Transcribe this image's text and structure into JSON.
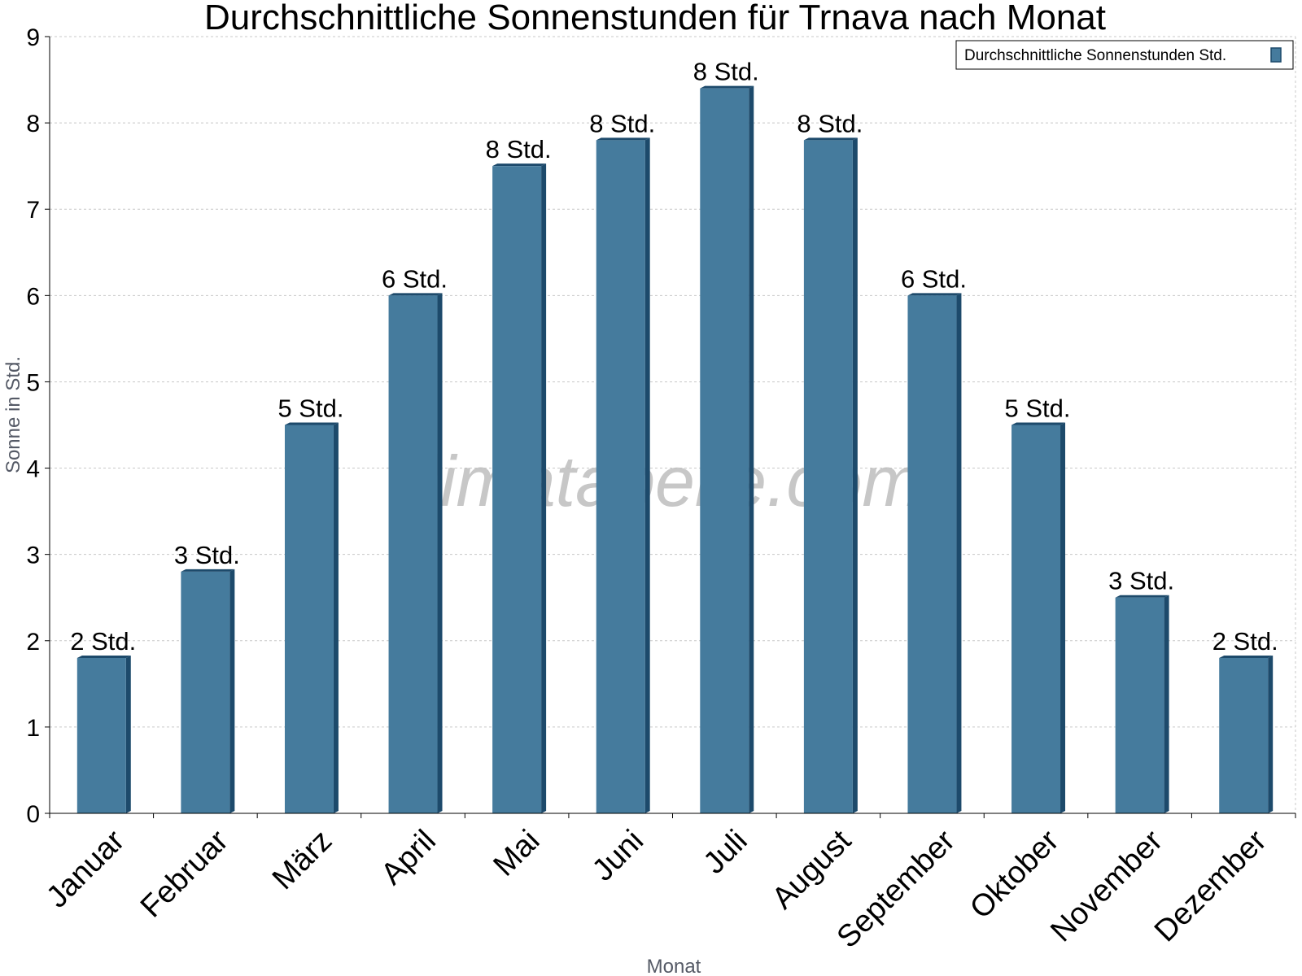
{
  "chart_data": {
    "type": "bar",
    "title": "Durchschnittliche Sonnenstunden für Trnava nach Monat",
    "xlabel": "Monat",
    "ylabel": "Sonne in Std.",
    "ylim": [
      0,
      9
    ],
    "yticks": [
      0,
      1,
      2,
      3,
      4,
      5,
      6,
      7,
      8,
      9
    ],
    "grid": true,
    "legend_position": "top-right",
    "categories": [
      "Januar",
      "Februar",
      "März",
      "April",
      "Mai",
      "Juni",
      "Juli",
      "August",
      "September",
      "Oktober",
      "November",
      "Dezember"
    ],
    "series": [
      {
        "name": "Durchschnittliche Sonnenstunden Std.",
        "values": [
          1.8,
          2.8,
          4.5,
          6.0,
          7.5,
          7.8,
          8.4,
          7.8,
          6.0,
          4.5,
          2.5,
          1.8
        ],
        "labels": [
          "2 Std.",
          "3 Std.",
          "5 Std.",
          "6 Std.",
          "8 Std.",
          "8 Std.",
          "8 Std.",
          "8 Std.",
          "6 Std.",
          "5 Std.",
          "3 Std.",
          "2 Std."
        ],
        "color": "#457b9d",
        "edge_color": "#1d4a6b"
      }
    ],
    "watermark": "klimatabelle.com"
  }
}
